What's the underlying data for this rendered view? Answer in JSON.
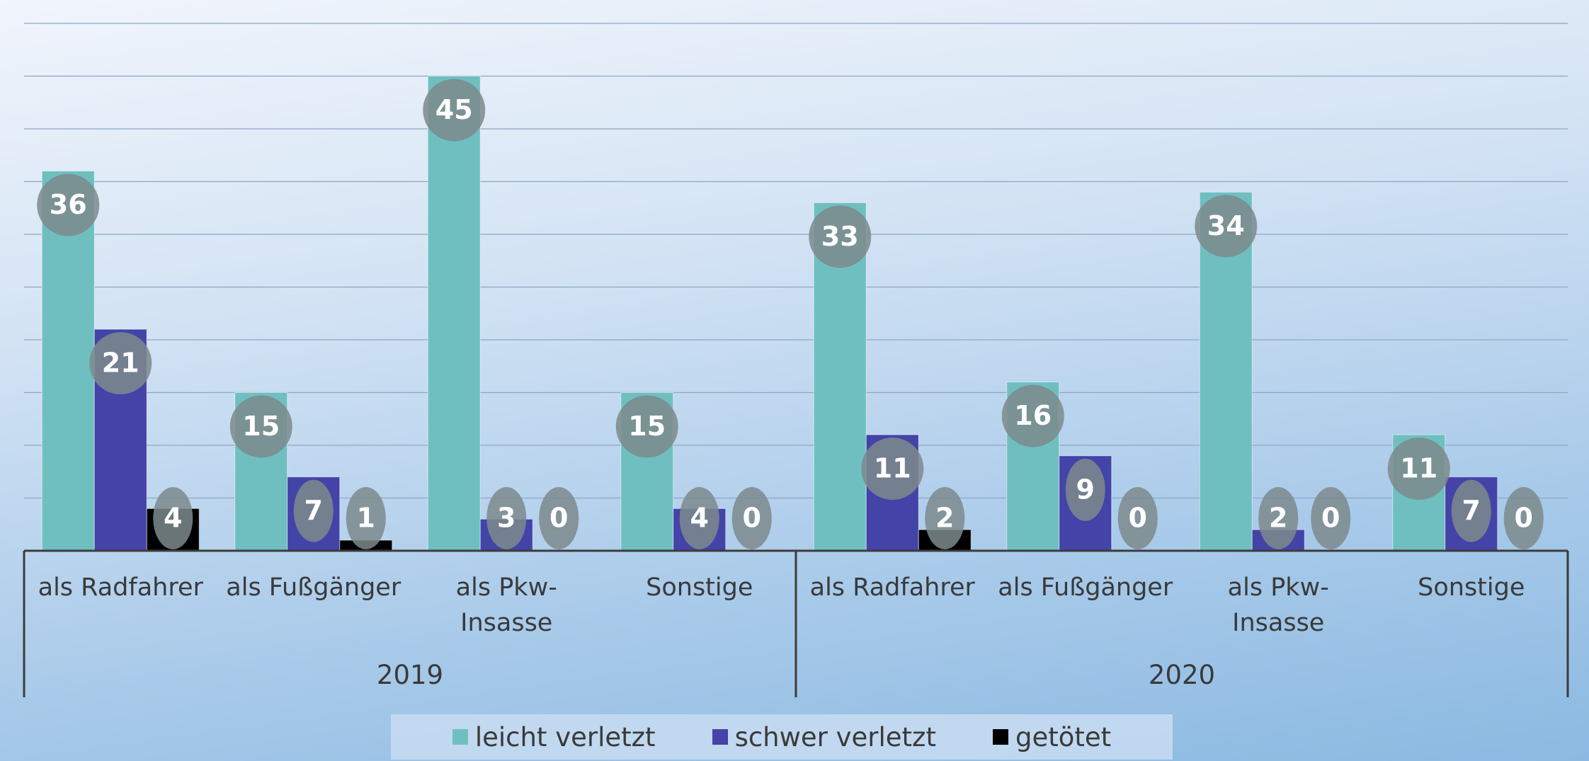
{
  "chart_data": {
    "type": "bar",
    "groups": [
      {
        "name": "2019",
        "categories": [
          "als Radfahrer",
          "als Fußgänger",
          "als Pkw-Insasse",
          "Sonstige"
        ]
      },
      {
        "name": "2020",
        "categories": [
          "als Radfahrer",
          "als Fußgänger",
          "als Pkw-Insasse",
          "Sonstige"
        ]
      }
    ],
    "series": [
      {
        "name": "leicht verletzt",
        "color": "#6fbfc1",
        "values": [
          36,
          15,
          45,
          15,
          33,
          16,
          34,
          11
        ]
      },
      {
        "name": "schwer verletzt",
        "color": "#4343a8",
        "values": [
          21,
          7,
          3,
          4,
          11,
          9,
          2,
          7
        ]
      },
      {
        "name": "getötet",
        "color": "#000000",
        "values": [
          4,
          1,
          0,
          0,
          2,
          0,
          0,
          0
        ]
      }
    ],
    "ylim": [
      0,
      50
    ],
    "yticks": [
      0,
      5,
      10,
      15,
      20,
      25,
      30,
      35,
      40,
      45,
      50
    ],
    "grid": true,
    "legend": "bottom"
  }
}
